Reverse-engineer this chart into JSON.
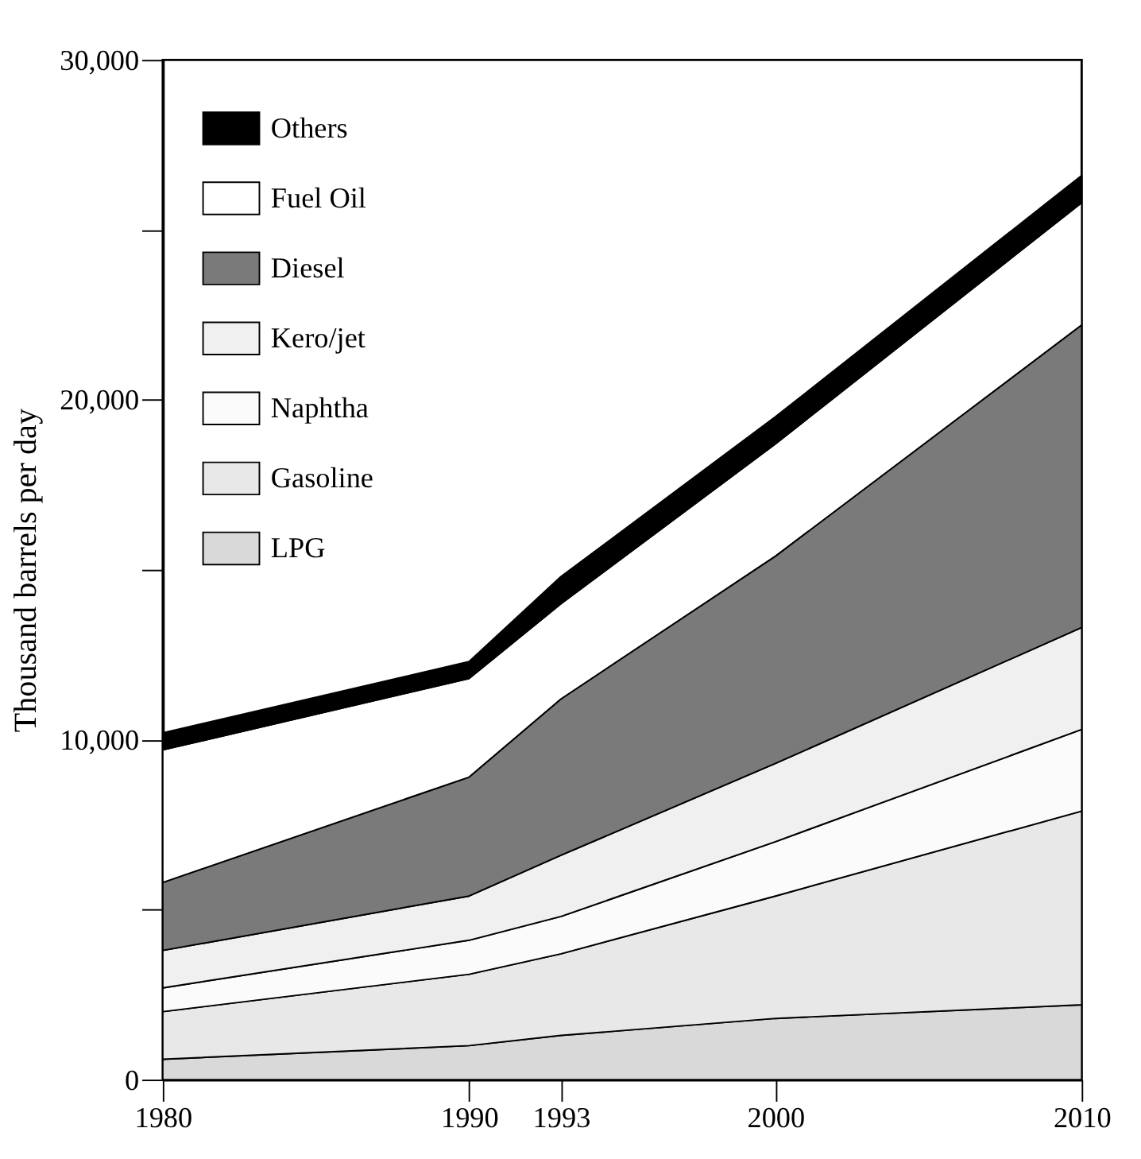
{
  "chart_data": {
    "type": "area",
    "stacked": true,
    "ylabel": "Thousand barrels per day",
    "x": [
      1980,
      1990,
      1993,
      2000,
      2010
    ],
    "series": [
      {
        "name": "LPG",
        "color": "#d9d9d9",
        "values": [
          600,
          1000,
          1300,
          1800,
          2200
        ]
      },
      {
        "name": "Gasoline",
        "color": "#e8e8e8",
        "values": [
          1400,
          2100,
          2400,
          3600,
          5700
        ]
      },
      {
        "name": "Naphtha",
        "color": "#fbfbfb",
        "values": [
          700,
          1000,
          1100,
          1600,
          2400
        ]
      },
      {
        "name": "Kero/jet",
        "color": "#f0f0f0",
        "values": [
          1100,
          1300,
          1800,
          2300,
          3000
        ]
      },
      {
        "name": "Diesel",
        "color": "#7a7a7a",
        "values": [
          2000,
          3500,
          4600,
          6100,
          8900
        ]
      },
      {
        "name": "Fuel Oil",
        "color": "#ffffff",
        "values": [
          3900,
          2900,
          2800,
          3300,
          3600
        ]
      },
      {
        "name": "Others",
        "color": "#000000",
        "values": [
          500,
          500,
          800,
          800,
          800
        ]
      }
    ],
    "xlim": [
      1980,
      2010
    ],
    "xticks": [
      1980,
      1990,
      1993,
      2000,
      2010
    ],
    "ylim": [
      0,
      30000
    ],
    "yticks": [
      0,
      {
        "value": 5000,
        "label": null
      },
      {
        "value": 10000,
        "label": "10,000"
      },
      {
        "value": 15000,
        "label": null
      },
      {
        "value": 20000,
        "label": "20,000"
      },
      {
        "value": 25000,
        "label": null
      },
      {
        "value": 30000,
        "label": "30,000"
      }
    ],
    "grid": false,
    "legend": "top left"
  }
}
